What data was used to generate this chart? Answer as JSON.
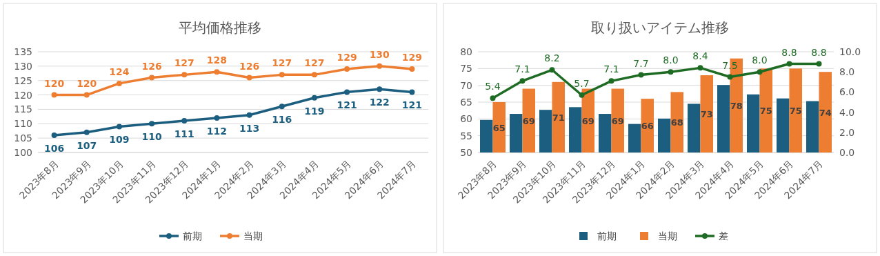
{
  "chart_data": [
    {
      "type": "line",
      "title": "平均価格推移",
      "categories": [
        "2023年8月",
        "2023年9月",
        "2023年10月",
        "2023年11月",
        "2023年12月",
        "2024年1月",
        "2024年2月",
        "2024年3月",
        "2024年4月",
        "2024年5月",
        "2024年6月",
        "2024年7月"
      ],
      "ylim": [
        100,
        135
      ],
      "yticks": [
        100,
        105,
        110,
        115,
        120,
        125,
        130,
        135
      ],
      "grid": "y",
      "legend": "bottom",
      "marker": "circle",
      "data_labels": true,
      "series": [
        {
          "name": "前期",
          "color": "#1b5e7f",
          "values": [
            106,
            107,
            109,
            110,
            111,
            112,
            113,
            116,
            119,
            121,
            122,
            121
          ]
        },
        {
          "name": "当期",
          "color": "#ed7d31",
          "values": [
            120,
            120,
            124,
            126,
            127,
            128,
            126,
            127,
            127,
            129,
            130,
            129
          ]
        }
      ]
    },
    {
      "type": "bar",
      "title": "取り扱いアイテム推移",
      "categories": [
        "2023年8月",
        "2023年9月",
        "2023年10月",
        "2023年11月",
        "2023年12月",
        "2024年1月",
        "2024年2月",
        "2024年3月",
        "2024年4月",
        "2024年5月",
        "2024年6月",
        "2024年7月"
      ],
      "ylim": [
        50,
        80
      ],
      "yticks": [
        50,
        55,
        60,
        65,
        70,
        75,
        80
      ],
      "y2lim": [
        0,
        10
      ],
      "y2ticks": [
        {
          "value": 0,
          "label": "0.0"
        },
        {
          "value": 2,
          "label": "2.0"
        },
        {
          "value": 4,
          "label": "4.0"
        },
        {
          "value": 6,
          "label": "6.0"
        },
        {
          "value": 8,
          "label": "8.0"
        },
        {
          "value": 10,
          "label": "10.0"
        }
      ],
      "grid": "y",
      "legend": "bottom",
      "marker": "circle",
      "series": [
        {
          "name": "前期",
          "color": "#1b5e7f",
          "values": [
            59.7,
            61.5,
            62.7,
            63.5,
            61.5,
            58.5,
            60.1,
            64.5,
            70.1,
            67.3,
            66.1,
            65.3
          ]
        },
        {
          "name": "当期",
          "color": "#ed7d31",
          "values": [
            65,
            69,
            71,
            69,
            69,
            66,
            68,
            73,
            78,
            75,
            75,
            74
          ],
          "value_labels": [
            "65",
            "69",
            "71",
            "69",
            "69",
            "66",
            "68",
            "73",
            "78",
            "75",
            "75",
            "74"
          ]
        },
        {
          "name": "差",
          "type": "line",
          "axis": "y2",
          "color": "#1e6b24",
          "values": [
            5.4,
            7.1,
            8.2,
            5.7,
            7.1,
            7.7,
            8.0,
            8.4,
            7.5,
            8.0,
            8.8,
            8.8
          ],
          "value_labels": [
            "5.4",
            "7.1",
            "8.2",
            "5.7",
            "7.1",
            "7.7",
            "8.0",
            "8.4",
            "7.5",
            "8.0",
            "8.8",
            "8.8"
          ]
        }
      ]
    }
  ]
}
